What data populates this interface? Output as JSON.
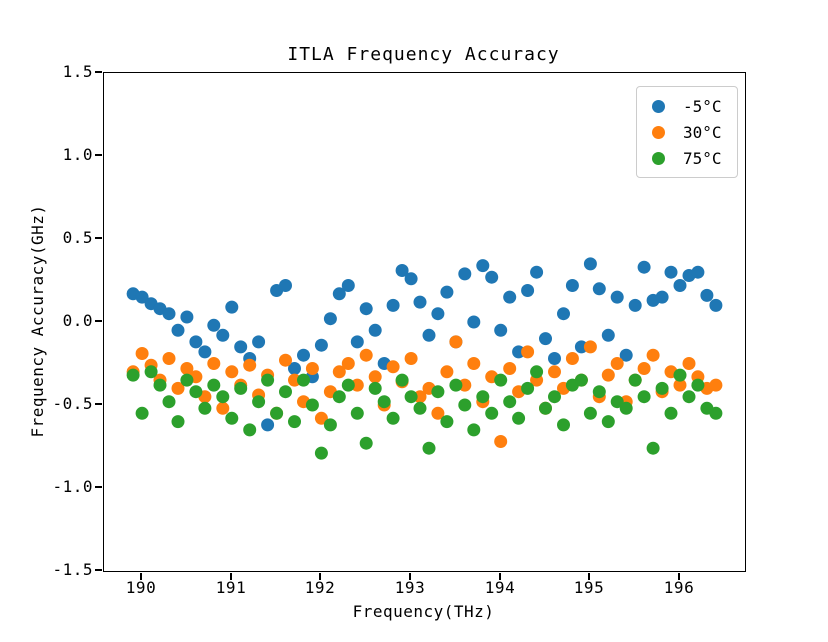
{
  "figure": {
    "background": "#ffffff",
    "spine_color": "#000000"
  },
  "chart_data": {
    "type": "scatter",
    "title": "ITLA Frequency Accuracy",
    "xlabel": "Frequency(THz)",
    "ylabel": "Frequency Accuracy(GHz)",
    "xlim": [
      189.575,
      196.725
    ],
    "ylim": [
      -1.5,
      1.5
    ],
    "grid": false,
    "legend_position": "upper right",
    "marker_diameter_px": 13,
    "x_ticks": [
      190,
      191,
      192,
      193,
      194,
      195,
      196
    ],
    "x_tick_labels": [
      "190",
      "191",
      "192",
      "193",
      "194",
      "195",
      "196"
    ],
    "y_ticks": [
      1.5,
      1.0,
      0.5,
      0.0,
      -0.5,
      -1.0,
      -1.5
    ],
    "y_tick_labels": [
      "1.5",
      "1.0",
      "0.5",
      "0.0",
      "-0.5",
      "-1.0",
      "-1.5"
    ],
    "x": [
      189.9,
      190.0,
      190.1,
      190.2,
      190.3,
      190.4,
      190.5,
      190.6,
      190.7,
      190.8,
      190.9,
      191.0,
      191.1,
      191.2,
      191.3,
      191.4,
      191.5,
      191.6,
      191.7,
      191.8,
      191.9,
      192.0,
      192.1,
      192.2,
      192.3,
      192.4,
      192.5,
      192.6,
      192.7,
      192.8,
      192.9,
      193.0,
      193.1,
      193.2,
      193.3,
      193.4,
      193.5,
      193.6,
      193.7,
      193.8,
      193.9,
      194.0,
      194.1,
      194.2,
      194.3,
      194.4,
      194.5,
      194.6,
      194.7,
      194.8,
      194.9,
      195.0,
      195.1,
      195.2,
      195.3,
      195.4,
      195.5,
      195.6,
      195.7,
      195.8,
      195.9,
      196.0,
      196.1,
      196.2,
      196.3,
      196.4
    ],
    "series": [
      {
        "name": "-5°C",
        "color": "#1f77b4",
        "values": [
          0.17,
          0.15,
          0.11,
          0.08,
          0.05,
          -0.05,
          0.03,
          -0.12,
          -0.18,
          -0.02,
          -0.08,
          0.09,
          -0.15,
          -0.22,
          -0.12,
          -0.62,
          0.19,
          0.22,
          -0.28,
          -0.2,
          -0.33,
          -0.14,
          0.02,
          0.17,
          0.22,
          -0.12,
          0.08,
          -0.05,
          -0.25,
          0.1,
          0.31,
          0.26,
          0.12,
          -0.08,
          0.05,
          0.18,
          -0.12,
          0.29,
          0.0,
          0.34,
          0.27,
          -0.05,
          0.15,
          -0.18,
          0.19,
          0.3,
          -0.1,
          -0.22,
          0.05,
          0.22,
          -0.15,
          0.35,
          0.2,
          -0.08,
          0.15,
          -0.2,
          0.1,
          0.33,
          0.13,
          0.15,
          0.3,
          0.22,
          0.28,
          0.3,
          0.16,
          0.1
        ]
      },
      {
        "name": "30°C",
        "color": "#ff7f0e",
        "values": [
          -0.3,
          -0.19,
          -0.26,
          -0.35,
          -0.22,
          -0.4,
          -0.28,
          -0.33,
          -0.45,
          -0.25,
          -0.52,
          -0.3,
          -0.38,
          -0.26,
          -0.44,
          -0.32,
          -0.55,
          -0.23,
          -0.35,
          -0.48,
          -0.28,
          -0.58,
          -0.42,
          -0.3,
          -0.25,
          -0.38,
          -0.2,
          -0.33,
          -0.5,
          -0.27,
          -0.36,
          -0.22,
          -0.45,
          -0.4,
          -0.55,
          -0.3,
          -0.12,
          -0.38,
          -0.25,
          -0.48,
          -0.33,
          -0.72,
          -0.28,
          -0.42,
          -0.18,
          -0.35,
          -0.52,
          -0.3,
          -0.4,
          -0.22,
          -0.35,
          -0.15,
          -0.45,
          -0.32,
          -0.25,
          -0.48,
          -0.35,
          -0.28,
          -0.2,
          -0.42,
          -0.3,
          -0.38,
          -0.25,
          -0.33,
          -0.4,
          -0.38
        ]
      },
      {
        "name": "75°C",
        "color": "#2ca02c",
        "values": [
          -0.32,
          -0.55,
          -0.3,
          -0.38,
          -0.48,
          -0.6,
          -0.35,
          -0.42,
          -0.52,
          -0.38,
          -0.45,
          -0.58,
          -0.4,
          -0.65,
          -0.48,
          -0.35,
          -0.55,
          -0.42,
          -0.6,
          -0.35,
          -0.5,
          -0.79,
          -0.62,
          -0.45,
          -0.38,
          -0.55,
          -0.73,
          -0.4,
          -0.48,
          -0.58,
          -0.35,
          -0.45,
          -0.52,
          -0.76,
          -0.42,
          -0.6,
          -0.38,
          -0.5,
          -0.65,
          -0.45,
          -0.55,
          -0.35,
          -0.48,
          -0.58,
          -0.4,
          -0.3,
          -0.52,
          -0.45,
          -0.62,
          -0.38,
          -0.35,
          -0.55,
          -0.42,
          -0.6,
          -0.48,
          -0.52,
          -0.35,
          -0.45,
          -0.76,
          -0.4,
          -0.55,
          -0.32,
          -0.45,
          -0.38,
          -0.52,
          -0.55
        ]
      }
    ]
  }
}
